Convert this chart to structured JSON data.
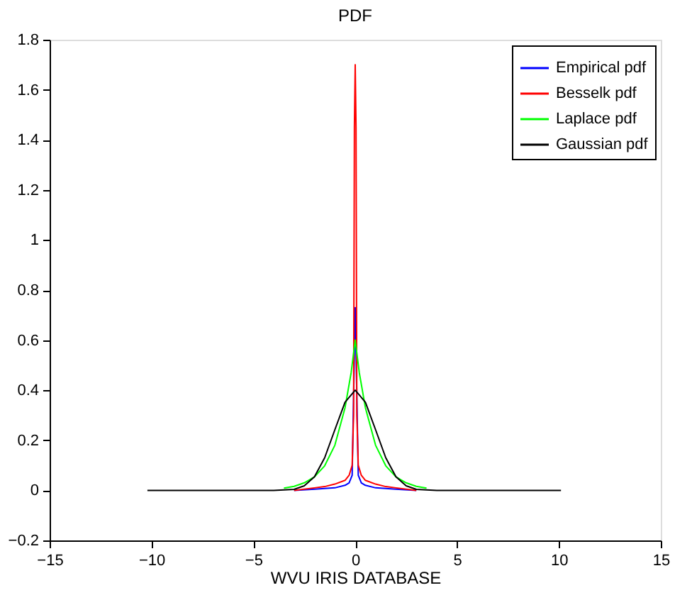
{
  "chart_data": {
    "type": "line",
    "title": "PDF",
    "xlabel": "WVU IRIS DATABASE",
    "xlim": [
      -15,
      15
    ],
    "xticks": [
      -15,
      -10,
      -5,
      0,
      5,
      10,
      15
    ],
    "ylim": [
      -0.2,
      1.8
    ],
    "yticks": [
      -0.2,
      0,
      0.2,
      0.4,
      0.6,
      0.8,
      1,
      1.2,
      1.4,
      1.6,
      1.8
    ],
    "grid": false,
    "legend": "top right",
    "marker": "none",
    "line_style": "solid",
    "series": [
      {
        "name": "Empirical pdf",
        "color": "#0000ff",
        "x": [
          -3,
          -2,
          -1,
          -0.5,
          -0.3,
          -0.15,
          0,
          0.15,
          0.3,
          0.5,
          1,
          2,
          3
        ],
        "values": [
          0,
          0.005,
          0.01,
          0.02,
          0.03,
          0.06,
          0.73,
          0.06,
          0.03,
          0.02,
          0.01,
          0.005,
          0
        ]
      },
      {
        "name": "Besselk pdf",
        "color": "#ff0000",
        "x": [
          -3,
          -2,
          -1.5,
          -1,
          -0.5,
          -0.3,
          -0.15,
          -0.08,
          -0.04,
          0,
          0.04,
          0.08,
          0.15,
          0.3,
          0.5,
          1,
          1.5,
          2,
          3
        ],
        "values": [
          0,
          0.01,
          0.015,
          0.025,
          0.04,
          0.06,
          0.1,
          0.3,
          1.45,
          1.7,
          1.45,
          0.3,
          0.1,
          0.06,
          0.04,
          0.025,
          0.015,
          0.01,
          0
        ]
      },
      {
        "name": "Laplace pdf",
        "color": "#00ff00",
        "x": [
          -3.5,
          -3,
          -2.5,
          -2,
          -1.5,
          -1,
          -0.5,
          -0.2,
          0,
          0.2,
          0.5,
          1,
          1.5,
          2,
          2.5,
          3,
          3.5
        ],
        "values": [
          0.009,
          0.016,
          0.03,
          0.054,
          0.098,
          0.18,
          0.33,
          0.47,
          0.6,
          0.47,
          0.33,
          0.18,
          0.098,
          0.054,
          0.03,
          0.016,
          0.009
        ]
      },
      {
        "name": "Gaussian pdf",
        "color": "#000000",
        "x": [
          -10.2,
          -4,
          -3,
          -2.5,
          -2,
          -1.5,
          -1,
          -0.5,
          0,
          0.5,
          1,
          1.5,
          2,
          2.5,
          3,
          4,
          10.1
        ],
        "values": [
          0,
          0,
          0.004,
          0.018,
          0.054,
          0.13,
          0.242,
          0.352,
          0.4,
          0.352,
          0.242,
          0.13,
          0.054,
          0.018,
          0.004,
          0,
          0
        ]
      }
    ]
  }
}
